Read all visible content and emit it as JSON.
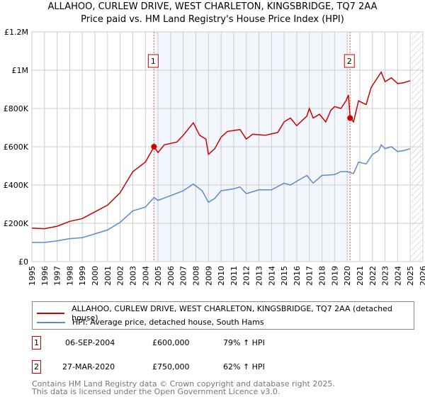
{
  "chart_data": {
    "type": "line",
    "title": "ALLAHOO, CURLEW DRIVE, WEST CHARLETON, KINGSBRIDGE, TQ7 2AA",
    "subtitle": "Price paid vs. HM Land Registry's House Price Index (HPI)",
    "xlim": [
      1995,
      2026
    ],
    "ylim": [
      0,
      1200000
    ],
    "y_ticks": [
      0,
      200000,
      400000,
      600000,
      800000,
      1000000,
      1200000
    ],
    "y_tick_labels": [
      "£0",
      "£200K",
      "£400K",
      "£600K",
      "£800K",
      "£1M",
      "£1.2M"
    ],
    "x_ticks": [
      1995,
      1996,
      1997,
      1998,
      1999,
      2000,
      2001,
      2002,
      2003,
      2004,
      2005,
      2006,
      2007,
      2008,
      2009,
      2010,
      2011,
      2012,
      2013,
      2014,
      2015,
      2016,
      2017,
      2018,
      2019,
      2020,
      2021,
      2022,
      2023,
      2024,
      2025,
      2026
    ],
    "grid": true,
    "shaded_period": [
      2004.68,
      2020.23
    ],
    "forecast_hatch_from": 2025.1,
    "series": [
      {
        "name": "ALLAHOO, CURLEW DRIVE, WEST CHARLETON, KINGSBRIDGE, TQ7 2AA (detached house)",
        "color": "#cc0000",
        "x": [
          1995,
          1996,
          1997,
          1998,
          1999,
          2000,
          2001,
          2002,
          2003,
          2004,
          2004.68,
          2005,
          2005.5,
          2006.5,
          2007,
          2007.8,
          2008.3,
          2008.8,
          2009,
          2009.5,
          2010,
          2010.5,
          2011.5,
          2012,
          2012.5,
          2013.5,
          2014.5,
          2015,
          2015.5,
          2016,
          2016.8,
          2017,
          2017.3,
          2017.8,
          2018.3,
          2018.7,
          2019,
          2019.5,
          2019.9,
          2020.1,
          2020.23,
          2020.5,
          2020.9,
          2021.5,
          2021.9,
          2022.3,
          2022.7,
          2023,
          2023.5,
          2024,
          2024.5,
          2025
        ],
        "y": [
          175000,
          172000,
          185000,
          210000,
          225000,
          260000,
          295000,
          360000,
          470000,
          520000,
          600000,
          570000,
          610000,
          625000,
          660000,
          725000,
          660000,
          640000,
          560000,
          590000,
          650000,
          680000,
          690000,
          640000,
          665000,
          660000,
          675000,
          730000,
          750000,
          710000,
          760000,
          800000,
          750000,
          770000,
          730000,
          790000,
          810000,
          800000,
          840000,
          870000,
          750000,
          730000,
          840000,
          820000,
          910000,
          950000,
          990000,
          940000,
          960000,
          930000,
          935000,
          945000
        ]
      },
      {
        "name": "HPI: Average price, detached house, South Hams",
        "color": "#5b8bd0",
        "x": [
          1995,
          1996,
          1997,
          1998,
          1999,
          2000,
          2001,
          2002,
          2003,
          2004,
          2004.68,
          2005,
          2006,
          2007,
          2007.8,
          2008.5,
          2009,
          2009.5,
          2010,
          2011,
          2011.5,
          2012,
          2013,
          2014,
          2015,
          2015.5,
          2016,
          2016.8,
          2017.3,
          2018,
          2019,
          2019.5,
          2020,
          2020.5,
          2020.9,
          2021.5,
          2022,
          2022.5,
          2022.7,
          2023,
          2023.5,
          2024,
          2024.5,
          2025
        ],
        "y": [
          100000,
          100000,
          108000,
          120000,
          125000,
          145000,
          165000,
          205000,
          265000,
          285000,
          335000,
          320000,
          345000,
          370000,
          405000,
          370000,
          310000,
          330000,
          370000,
          380000,
          390000,
          355000,
          375000,
          375000,
          410000,
          400000,
          420000,
          450000,
          410000,
          450000,
          455000,
          470000,
          470000,
          460000,
          520000,
          510000,
          560000,
          580000,
          610000,
          590000,
          600000,
          575000,
          580000,
          590000
        ]
      }
    ],
    "annotations": [
      {
        "label": "1",
        "x": 2004.68,
        "y": 600000
      },
      {
        "label": "2",
        "x": 2020.23,
        "y": 750000
      }
    ]
  },
  "table": [
    {
      "num": "1",
      "date": "06-SEP-2004",
      "price": "£600,000",
      "hpi": "79% ↑ HPI"
    },
    {
      "num": "2",
      "date": "27-MAR-2020",
      "price": "£750,000",
      "hpi": "62% ↑ HPI"
    }
  ],
  "footer": {
    "line1": "Contains HM Land Registry data © Crown copyright and database right 2025.",
    "line2": "This data is licensed under the Open Government Licence v3.0."
  }
}
